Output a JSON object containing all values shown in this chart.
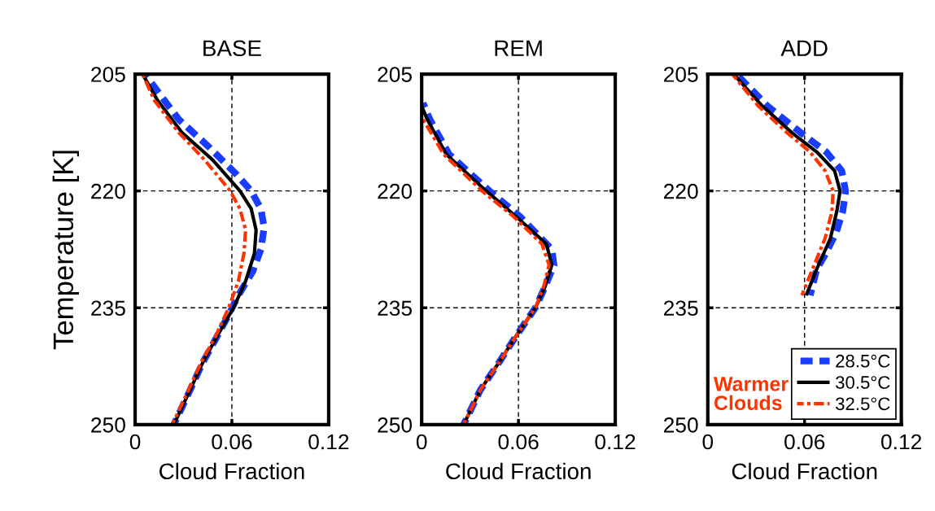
{
  "chart_data": [
    {
      "type": "line",
      "title": "BASE",
      "xlabel": "Cloud Fraction",
      "ylabel": "Temperature [K]",
      "xlim": [
        0,
        0.12
      ],
      "xticks": [
        0,
        0.06,
        0.12
      ],
      "ylim": [
        250,
        205
      ],
      "yticks": [
        205,
        220,
        235,
        250
      ],
      "grid": true,
      "series": [
        {
          "color": "#1a3cff",
          "line_style": "dashed",
          "values": [
            205,
            210.8,
            214.3,
            217.7,
            220,
            222.3,
            224.7,
            227.5,
            230.3,
            233.4,
            236.1,
            238.6,
            242,
            245.6,
            250
          ],
          "x": [
            0.006,
            0.027,
            0.0455,
            0.062,
            0.072,
            0.078,
            0.08,
            0.078,
            0.073,
            0.064,
            0.0575,
            0.051,
            0.042,
            0.034,
            0.024
          ]
        },
        {
          "color": "#000000",
          "line_style": "solid",
          "values": [
            205,
            208.4,
            212.5,
            216,
            220,
            222.3,
            225,
            228,
            231.6,
            235,
            238.6,
            242,
            245.6,
            250
          ],
          "x": [
            0.0046,
            0.014,
            0.029,
            0.048,
            0.065,
            0.072,
            0.075,
            0.074,
            0.0685,
            0.061,
            0.051,
            0.042,
            0.034,
            0.024
          ]
        },
        {
          "color": "#ff3300",
          "line_style": "dashdot",
          "values": [
            205,
            208.4,
            212.5,
            216,
            220,
            222.3,
            225,
            228,
            231.6,
            235,
            238.6,
            242,
            245.6,
            250
          ],
          "x": [
            0.0046,
            0.012,
            0.027,
            0.043,
            0.059,
            0.065,
            0.0685,
            0.0675,
            0.064,
            0.058,
            0.05,
            0.041,
            0.033,
            0.023
          ]
        }
      ]
    },
    {
      "type": "line",
      "title": "REM",
      "xlabel": "Cloud Fraction",
      "xlim": [
        0,
        0.12
      ],
      "xticks": [
        0,
        0.06,
        0.12
      ],
      "ylim": [
        250,
        205
      ],
      "yticks": [
        205,
        220,
        235,
        250
      ],
      "grid": true,
      "series": [
        {
          "color": "#1a3cff",
          "line_style": "dashed",
          "values": [
            208.7,
            210.8,
            215.3,
            220,
            223.3,
            227.5,
            229.5,
            232.3,
            235,
            238.6,
            242,
            245.5,
            250
          ],
          "x": [
            0.0008,
            0.005,
            0.017,
            0.042,
            0.061,
            0.0807,
            0.082,
            0.0765,
            0.0705,
            0.0586,
            0.048,
            0.0365,
            0.026
          ]
        },
        {
          "color": "#000000",
          "line_style": "solid",
          "values": [
            209.1,
            210.8,
            215.3,
            220,
            223.3,
            226.8,
            229.5,
            232.3,
            235,
            238.6,
            242,
            245.5,
            250
          ],
          "x": [
            0,
            0.0034,
            0.0153,
            0.04,
            0.0586,
            0.0773,
            0.0807,
            0.0765,
            0.0705,
            0.0586,
            0.048,
            0.0365,
            0.026
          ]
        },
        {
          "color": "#ff3300",
          "line_style": "dashdot",
          "values": [
            210.5,
            215.3,
            220,
            223.3,
            226.8,
            229.5,
            232.3,
            235,
            238.6,
            242,
            245.5,
            250
          ],
          "x": [
            0,
            0.0136,
            0.0374,
            0.057,
            0.0745,
            0.079,
            0.0756,
            0.0705,
            0.0586,
            0.048,
            0.0365,
            0.026
          ]
        }
      ]
    },
    {
      "type": "line",
      "title": "ADD",
      "xlabel": "Cloud Fraction",
      "xlim": [
        0,
        0.12
      ],
      "xticks": [
        0,
        0.06,
        0.12
      ],
      "ylim": [
        250,
        205
      ],
      "yticks": [
        205,
        220,
        235,
        250
      ],
      "grid": true,
      "legend": "bottom right",
      "annotations": [
        "Warmer\nClouds"
      ],
      "series": [
        {
          "name": "28.5°C",
          "color": "#1a3cff",
          "line_style": "dashed",
          "values": [
            205,
            209.1,
            212.5,
            215,
            217.4,
            220,
            222.6,
            225.4,
            228.2,
            230,
            233.4
          ],
          "x": [
            0.0177,
            0.037,
            0.0575,
            0.0735,
            0.083,
            0.0854,
            0.0837,
            0.0795,
            0.0727,
            0.0676,
            0.0635
          ]
        },
        {
          "name": "30.5°C",
          "color": "#000000",
          "line_style": "solid",
          "values": [
            205,
            209.1,
            212.5,
            215,
            217.4,
            220,
            222.6,
            226.1,
            230,
            233.4
          ],
          "x": [
            0.016,
            0.0338,
            0.052,
            0.0676,
            0.0786,
            0.082,
            0.08,
            0.076,
            0.0676,
            0.061
          ]
        },
        {
          "name": "32.5°C",
          "color": "#ff3300",
          "line_style": "dashdot",
          "values": [
            205,
            209.1,
            212.5,
            215,
            217.4,
            220,
            222.6,
            226.1,
            230,
            233.4
          ],
          "x": [
            0.0152,
            0.0313,
            0.049,
            0.0634,
            0.0727,
            0.0777,
            0.077,
            0.0727,
            0.065,
            0.0583
          ]
        }
      ]
    }
  ]
}
